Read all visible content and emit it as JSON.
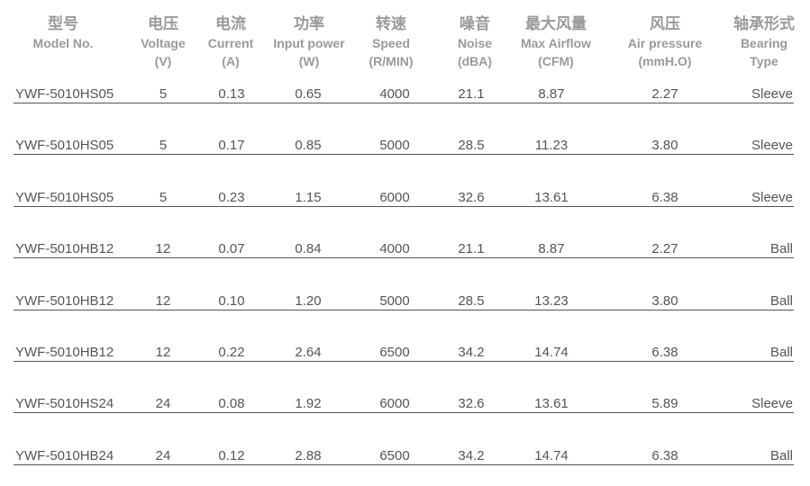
{
  "table": {
    "header": [
      [
        "型号",
        "Model No."
      ],
      [
        "电压",
        "Voltage",
        "(V)"
      ],
      [
        "电流",
        "Current",
        "(A)"
      ],
      [
        "功率",
        "Input power",
        "(W)"
      ],
      [
        "转速",
        "Speed",
        "(R/MIN)"
      ],
      [
        "噪音",
        "Noise",
        "(dBA)"
      ],
      [
        "最大风量",
        "Max Airflow",
        "(CFM)"
      ],
      [
        "风压",
        "Air pressure",
        "(mmH.O)"
      ],
      [
        "轴承形式",
        "Bearing",
        "Type"
      ]
    ],
    "rows": [
      [
        "YWF-5010HS05",
        "5",
        "0.13",
        "0.65",
        "4000",
        "21.1",
        "8.87",
        "2.27",
        "Sleeve"
      ],
      [
        "YWF-5010HS05",
        "5",
        "0.17",
        "0.85",
        "5000",
        "28.5",
        "11.23",
        "3.80",
        "Sleeve"
      ],
      [
        "YWF-5010HS05",
        "5",
        "0.23",
        "1.15",
        "6000",
        "32.6",
        "13.61",
        "6.38",
        "Sleeve"
      ],
      [
        "YWF-5010HB12",
        "12",
        "0.07",
        "0.84",
        "4000",
        "21.1",
        "8.87",
        "2.27",
        "Ball"
      ],
      [
        "YWF-5010HB12",
        "12",
        "0.10",
        "1.20",
        "5000",
        "28.5",
        "13.23",
        "3.80",
        "Ball"
      ],
      [
        "YWF-5010HB12",
        "12",
        "0.22",
        "2.64",
        "6500",
        "34.2",
        "14.74",
        "6.38",
        "Ball"
      ],
      [
        "YWF-5010HS24",
        "24",
        "0.08",
        "1.92",
        "6000",
        "32.6",
        "13.61",
        "5.89",
        "Sleeve"
      ],
      [
        "YWF-5010HB24",
        "24",
        "0.12",
        "2.88",
        "6500",
        "34.2",
        "14.74",
        "6.38",
        "Ball"
      ]
    ]
  }
}
